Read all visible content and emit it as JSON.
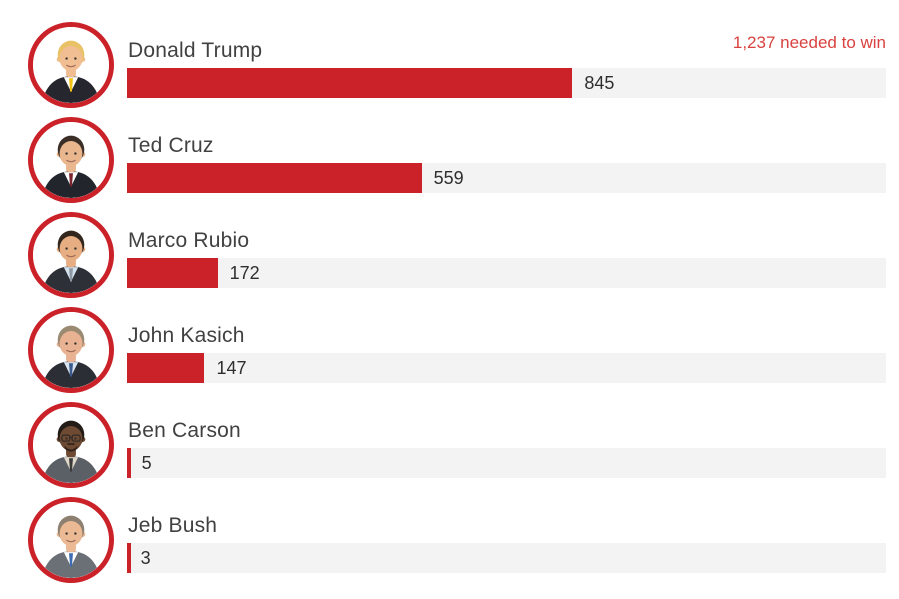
{
  "chart_data": {
    "type": "bar",
    "orientation": "horizontal",
    "title": "",
    "categories": [
      "Donald Trump",
      "Ted Cruz",
      "Marco Rubio",
      "John Kasich",
      "Ben Carson",
      "Jeb Bush"
    ],
    "values": [
      845,
      559,
      172,
      147,
      5,
      3
    ],
    "annotation": "1,237 needed to win",
    "target_to_win": 1237,
    "xlim": [
      0,
      1440
    ],
    "grid": false,
    "legend": false,
    "value_labels": "right-of-bar-end"
  },
  "colors": {
    "bar": "#cb2229",
    "bar_track": "#f3f3f3",
    "avatar_ring": "#cb2229",
    "annotation_text": "#d8423f",
    "name_text": "#414141",
    "value_text": "#2e2e2e",
    "background": "#ffffff"
  },
  "avatars": [
    {
      "person": "donald-trump",
      "skin": "#f1bd92",
      "hair": "#e9c268",
      "suit": "#26262e",
      "shirt": "#ffffff",
      "tie": "#f2c214",
      "glasses": false,
      "beard": null
    },
    {
      "person": "ted-cruz",
      "skin": "#eab68d",
      "hair": "#3a2e27",
      "suit": "#23252d",
      "shirt": "#ffffff",
      "tie": "#7c2330",
      "glasses": false,
      "beard": null
    },
    {
      "person": "marco-rubio",
      "skin": "#e7ad83",
      "hair": "#33261d",
      "suit": "#2d3037",
      "shirt": "#d4e2ee",
      "tie": "#8d98a3",
      "glasses": false,
      "beard": null
    },
    {
      "person": "john-kasich",
      "skin": "#e9b292",
      "hair": "#9b8a72",
      "suit": "#2b2e35",
      "shirt": "#d8e5f0",
      "tie": "#3a598c",
      "glasses": false,
      "beard": null
    },
    {
      "person": "ben-carson",
      "skin": "#6f4a33",
      "hair": "#221b16",
      "suit": "#5b6067",
      "shirt": "#ded8cb",
      "tie": "#3c3a38",
      "glasses": true,
      "beard": "#2a211b"
    },
    {
      "person": "jeb-bush",
      "skin": "#ecb995",
      "hair": "#8d8070",
      "suit": "#6b7077",
      "shirt": "#ffffff",
      "tie": "#3e6cb2",
      "glasses": false,
      "beard": null
    }
  ],
  "layout_note": "2016 GOP delegate tracker style bar list"
}
